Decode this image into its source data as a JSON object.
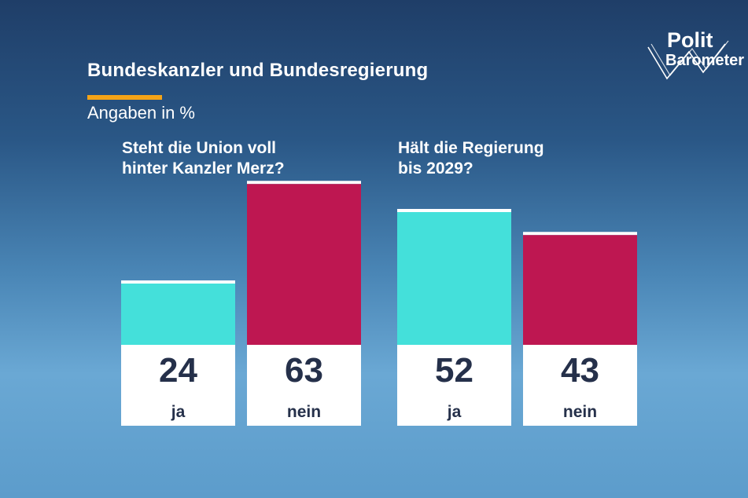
{
  "header": {
    "title": "Bundeskanzler und Bundesregierung",
    "subtitle": "Angaben in %",
    "accent_color": "#f4a317"
  },
  "logo": {
    "line1": "Polit",
    "line2": "Barometer"
  },
  "colors": {
    "ja": "#44e0da",
    "nein": "#be1751",
    "label_box": "#ffffff",
    "value_text": "#25304a"
  },
  "chart_data": [
    {
      "type": "bar",
      "title": "Steht die Union voll hinter Kanzler Merz?",
      "title_lines": [
        "Steht die Union voll",
        "hinter Kanzler Merz?"
      ],
      "categories": [
        "ja",
        "nein"
      ],
      "values": [
        24,
        63
      ],
      "ylabel": "",
      "xlabel": ""
    },
    {
      "type": "bar",
      "title": "Hält die Regierung bis 2029?",
      "title_lines": [
        "Hält die Regierung",
        "bis 2029?"
      ],
      "categories": [
        "ja",
        "nein"
      ],
      "values": [
        52,
        43
      ],
      "ylabel": "",
      "xlabel": ""
    }
  ]
}
